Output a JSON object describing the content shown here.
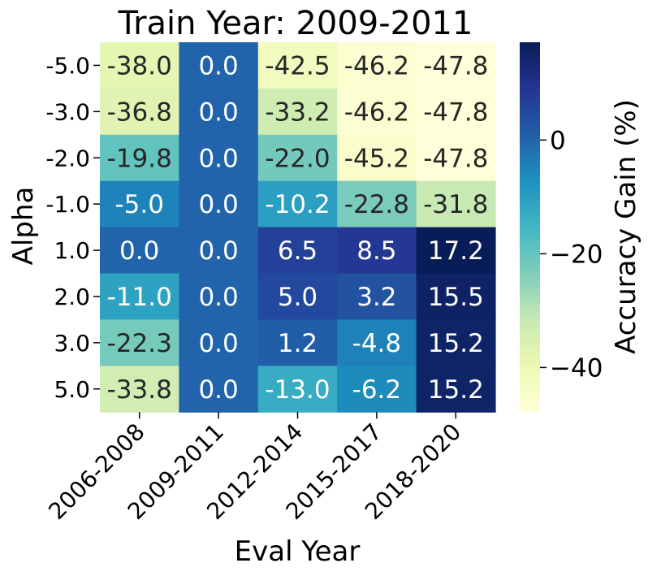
{
  "chart_data": {
    "type": "heatmap",
    "title": "Train Year: 2009-2011",
    "xlabel": "Eval Year",
    "ylabel": "Alpha",
    "x_categories": [
      "2006-2008",
      "2009-2011",
      "2012-2014",
      "2015-2017",
      "2018-2020"
    ],
    "y_categories": [
      "-5.0",
      "-3.0",
      "-2.0",
      "-1.0",
      "1.0",
      "2.0",
      "3.0",
      "5.0"
    ],
    "cells": [
      [
        "-38.0",
        "0.0",
        "-42.5",
        "-46.2",
        "-47.8"
      ],
      [
        "-36.8",
        "0.0",
        "-33.2",
        "-46.2",
        "-47.8"
      ],
      [
        "-19.8",
        "0.0",
        "-22.0",
        "-45.2",
        "-47.8"
      ],
      [
        "-5.0",
        "0.0",
        "-10.2",
        "-22.8",
        "-31.8"
      ],
      [
        "0.0",
        "0.0",
        "6.5",
        "8.5",
        "17.2"
      ],
      [
        "-11.0",
        "0.0",
        "5.0",
        "3.2",
        "15.5"
      ],
      [
        "-22.3",
        "0.0",
        "1.2",
        "-4.8",
        "15.2"
      ],
      [
        "-33.8",
        "0.0",
        "-13.0",
        "-6.2",
        "15.2"
      ]
    ],
    "colorbar": {
      "label": "Accuracy Gain (%)",
      "min": -47.8,
      "max": 17.2,
      "ticks": [
        0,
        -20,
        -40
      ],
      "tick_labels": [
        "0",
        "−20",
        "−40"
      ],
      "colormap": "YlGnBu"
    },
    "grid": false
  }
}
